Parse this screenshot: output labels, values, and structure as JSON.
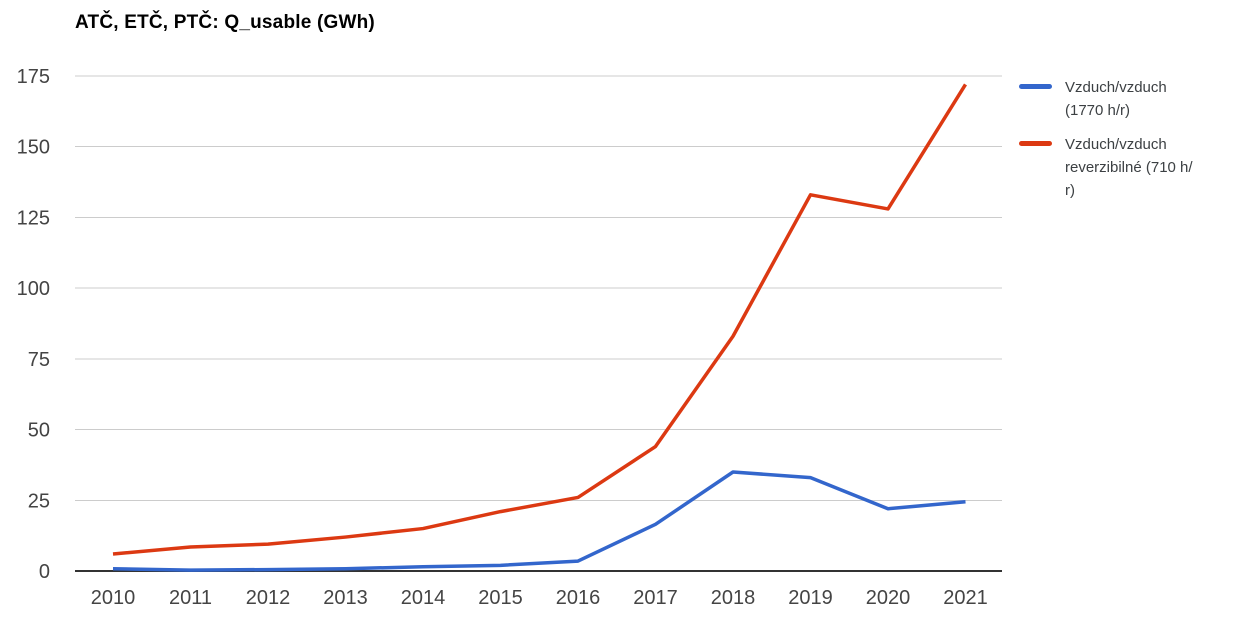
{
  "chart_data": {
    "type": "line",
    "title": "ATČ, ETČ, PTČ: Q_usable (GWh)",
    "xlabel": "",
    "ylabel": "",
    "categories": [
      "2010",
      "2011",
      "2012",
      "2013",
      "2014",
      "2015",
      "2016",
      "2017",
      "2018",
      "2019",
      "2020",
      "2021"
    ],
    "series": [
      {
        "name": "Vzduch/vzduch (1770 h/r)",
        "legend_lines": [
          "Vzduch/vzduch",
          "(1770 h/r)"
        ],
        "color": "#3366cc",
        "values": [
          0.8,
          0.3,
          0.5,
          0.8,
          1.5,
          2,
          3.5,
          16.5,
          35,
          33,
          22,
          24.5
        ]
      },
      {
        "name": "Vzduch/vzduch reverzibilné (710 h/r)",
        "legend_lines": [
          "Vzduch/vzduch",
          "reverzibilné (710 h/",
          "r)"
        ],
        "color": "#dc3912",
        "values": [
          6,
          8.5,
          9.5,
          12,
          15,
          21,
          26,
          44,
          83,
          133,
          128,
          172
        ]
      }
    ],
    "ylim": [
      0,
      175
    ],
    "yticks": [
      0,
      25,
      50,
      75,
      100,
      125,
      150,
      175
    ],
    "grid": true,
    "legend_position": "right",
    "colors": {
      "grid": "#cccccc",
      "baseline": "#333333",
      "axis_text": "#444444",
      "title": "#000000",
      "legend_text": "#3c4043"
    }
  }
}
